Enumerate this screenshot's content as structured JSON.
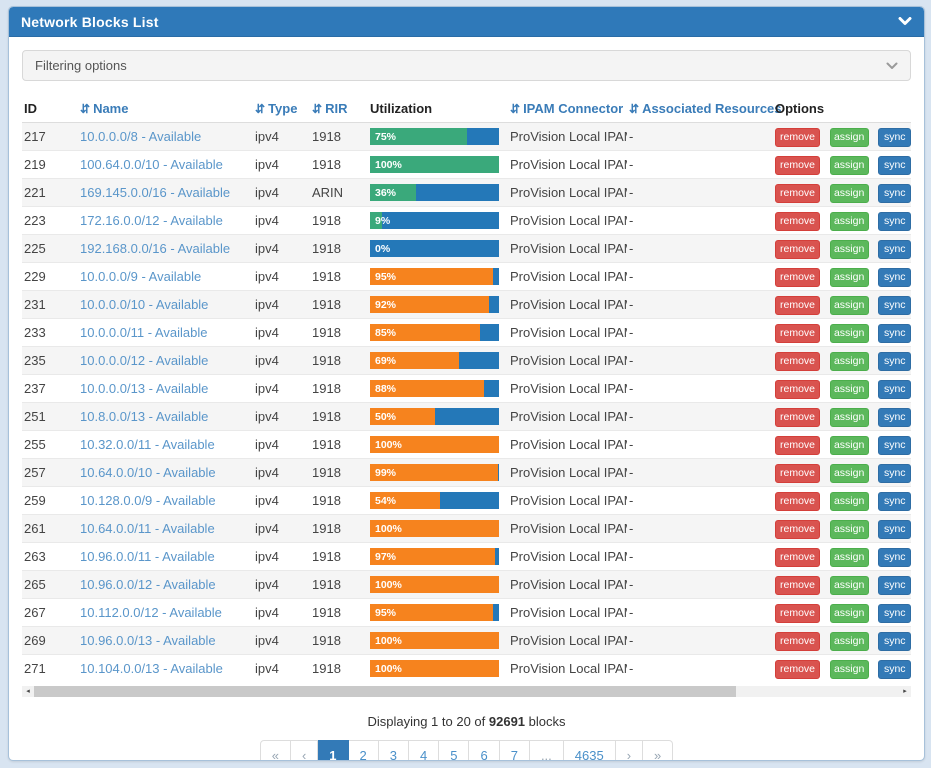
{
  "panel": {
    "title": "Network Blocks List"
  },
  "filter": {
    "label": "Filtering options"
  },
  "icons": {
    "panel_collapse": "chevron-down",
    "filter_expand": "chevron-down",
    "sort": "⇵",
    "scroll_left": "◂",
    "scroll_right": "▸"
  },
  "colors": {
    "header_blue": "#2f79b9",
    "bar_background_blue": "#2478b8",
    "bar_green": "#3aa97b",
    "bar_orange": "#f6831e",
    "remove_red": "#d9534f",
    "assign_green": "#5cb85c",
    "sync_blue": "#337ab7",
    "active_page_blue": "#337ab7",
    "link_blue": "#5a96ca",
    "page_background": "#d8e4f1"
  },
  "table": {
    "columns": [
      {
        "label": "ID",
        "sortable": false
      },
      {
        "label": "Name",
        "sortable": true
      },
      {
        "label": "Type",
        "sortable": true
      },
      {
        "label": "RIR",
        "sortable": true
      },
      {
        "label": "Utilization",
        "sortable": false
      },
      {
        "label": "IPAM Connector",
        "sortable": true
      },
      {
        "label": "Associated Resources",
        "sortable": true
      },
      {
        "label": "Options",
        "sortable": false
      }
    ],
    "option_buttons": {
      "remove": "remove",
      "assign": "assign",
      "sync": "sync",
      "clipped": ""
    },
    "rows": [
      {
        "id": "217",
        "name": "10.0.0.0/8 - Available",
        "type": "ipv4",
        "rir": "1918",
        "utilization": 75,
        "fill": "green",
        "ipam": "ProVision Local IPAM",
        "resources": "-"
      },
      {
        "id": "219",
        "name": "100.64.0.0/10 - Available",
        "type": "ipv4",
        "rir": "1918",
        "utilization": 100,
        "fill": "green",
        "ipam": "ProVision Local IPAM",
        "resources": "-"
      },
      {
        "id": "221",
        "name": "169.145.0.0/16 - Available",
        "type": "ipv4",
        "rir": "ARIN",
        "utilization": 36,
        "fill": "green",
        "ipam": "ProVision Local IPAM",
        "resources": "-"
      },
      {
        "id": "223",
        "name": "172.16.0.0/12 - Available",
        "type": "ipv4",
        "rir": "1918",
        "utilization": 9,
        "fill": "green",
        "ipam": "ProVision Local IPAM",
        "resources": "-"
      },
      {
        "id": "225",
        "name": "192.168.0.0/16 - Available",
        "type": "ipv4",
        "rir": "1918",
        "utilization": 0,
        "fill": "green",
        "ipam": "ProVision Local IPAM",
        "resources": "-"
      },
      {
        "id": "229",
        "name": "10.0.0.0/9 - Available",
        "type": "ipv4",
        "rir": "1918",
        "utilization": 95,
        "fill": "orange",
        "ipam": "ProVision Local IPAM",
        "resources": "-"
      },
      {
        "id": "231",
        "name": "10.0.0.0/10 - Available",
        "type": "ipv4",
        "rir": "1918",
        "utilization": 92,
        "fill": "orange",
        "ipam": "ProVision Local IPAM",
        "resources": "-"
      },
      {
        "id": "233",
        "name": "10.0.0.0/11 - Available",
        "type": "ipv4",
        "rir": "1918",
        "utilization": 85,
        "fill": "orange",
        "ipam": "ProVision Local IPAM",
        "resources": "-"
      },
      {
        "id": "235",
        "name": "10.0.0.0/12 - Available",
        "type": "ipv4",
        "rir": "1918",
        "utilization": 69,
        "fill": "orange",
        "ipam": "ProVision Local IPAM",
        "resources": "-"
      },
      {
        "id": "237",
        "name": "10.0.0.0/13 - Available",
        "type": "ipv4",
        "rir": "1918",
        "utilization": 88,
        "fill": "orange",
        "ipam": "ProVision Local IPAM",
        "resources": "-"
      },
      {
        "id": "251",
        "name": "10.8.0.0/13 - Available",
        "type": "ipv4",
        "rir": "1918",
        "utilization": 50,
        "fill": "orange",
        "ipam": "ProVision Local IPAM",
        "resources": "-"
      },
      {
        "id": "255",
        "name": "10.32.0.0/11 - Available",
        "type": "ipv4",
        "rir": "1918",
        "utilization": 100,
        "fill": "orange",
        "ipam": "ProVision Local IPAM",
        "resources": "-"
      },
      {
        "id": "257",
        "name": "10.64.0.0/10 - Available",
        "type": "ipv4",
        "rir": "1918",
        "utilization": 99,
        "fill": "orange",
        "ipam": "ProVision Local IPAM",
        "resources": "-"
      },
      {
        "id": "259",
        "name": "10.128.0.0/9 - Available",
        "type": "ipv4",
        "rir": "1918",
        "utilization": 54,
        "fill": "orange",
        "ipam": "ProVision Local IPAM",
        "resources": "-"
      },
      {
        "id": "261",
        "name": "10.64.0.0/11 - Available",
        "type": "ipv4",
        "rir": "1918",
        "utilization": 100,
        "fill": "orange",
        "ipam": "ProVision Local IPAM",
        "resources": "-"
      },
      {
        "id": "263",
        "name": "10.96.0.0/11 - Available",
        "type": "ipv4",
        "rir": "1918",
        "utilization": 97,
        "fill": "orange",
        "ipam": "ProVision Local IPAM",
        "resources": "-"
      },
      {
        "id": "265",
        "name": "10.96.0.0/12 - Available",
        "type": "ipv4",
        "rir": "1918",
        "utilization": 100,
        "fill": "orange",
        "ipam": "ProVision Local IPAM",
        "resources": "-"
      },
      {
        "id": "267",
        "name": "10.112.0.0/12 - Available",
        "type": "ipv4",
        "rir": "1918",
        "utilization": 95,
        "fill": "orange",
        "ipam": "ProVision Local IPAM",
        "resources": "-"
      },
      {
        "id": "269",
        "name": "10.96.0.0/13 - Available",
        "type": "ipv4",
        "rir": "1918",
        "utilization": 100,
        "fill": "orange",
        "ipam": "ProVision Local IPAM",
        "resources": "-"
      },
      {
        "id": "271",
        "name": "10.104.0.0/13 - Available",
        "type": "ipv4",
        "rir": "1918",
        "utilization": 100,
        "fill": "orange",
        "ipam": "ProVision Local IPAM",
        "resources": "-"
      }
    ]
  },
  "footer": {
    "displaying_prefix": "Displaying 1 to 20 of",
    "total": "92691",
    "displaying_suffix": "blocks",
    "pagination": [
      {
        "label": "«",
        "type": "first",
        "state": "muted"
      },
      {
        "label": "‹",
        "type": "prev",
        "state": "muted"
      },
      {
        "label": "1",
        "type": "page",
        "state": "active"
      },
      {
        "label": "2",
        "type": "page"
      },
      {
        "label": "3",
        "type": "page"
      },
      {
        "label": "4",
        "type": "page"
      },
      {
        "label": "5",
        "type": "page"
      },
      {
        "label": "6",
        "type": "page"
      },
      {
        "label": "7",
        "type": "page"
      },
      {
        "label": "...",
        "type": "ellipsis",
        "state": "muted"
      },
      {
        "label": "4635",
        "type": "page"
      },
      {
        "label": "›",
        "type": "next",
        "state": "muted"
      },
      {
        "label": "»",
        "type": "last",
        "state": "muted"
      }
    ]
  }
}
